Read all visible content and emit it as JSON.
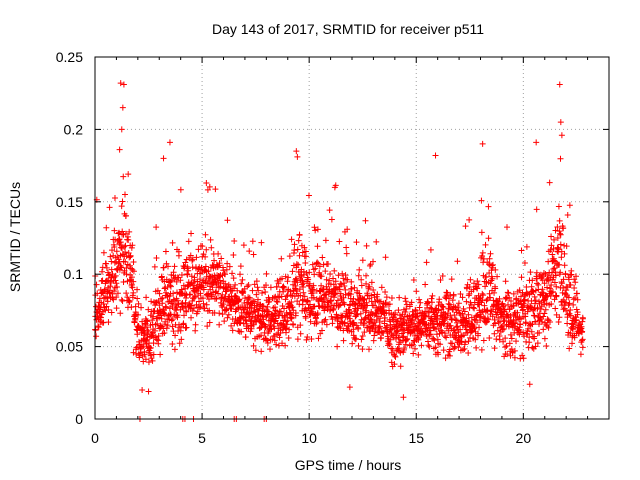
{
  "chart_data": {
    "type": "scatter",
    "title": "Day 143 of 2017, SRMTID for receiver p511",
    "xlabel": "GPS time / hours",
    "ylabel": "SRMTID / TECUs",
    "xlim": [
      0,
      24
    ],
    "ylim": [
      0,
      0.25
    ],
    "x_ticks": [
      0,
      5,
      10,
      15,
      20
    ],
    "x_tick_labels": [
      "0",
      "5",
      "10",
      "15",
      "20"
    ],
    "y_ticks": [
      0,
      0.05,
      0.1,
      0.15,
      0.2,
      0.25
    ],
    "y_tick_labels": [
      "0",
      "0.05",
      "0.1",
      "0.15",
      "0.2",
      "0.25"
    ],
    "grid": true,
    "marker": "+",
    "color": "#ff0000",
    "series": [
      {
        "name": "SRMTID",
        "envelope": [
          {
            "x": 0.0,
            "median": 0.072,
            "spread": 0.035
          },
          {
            "x": 0.5,
            "median": 0.09,
            "spread": 0.04
          },
          {
            "x": 1.0,
            "median": 0.1,
            "spread": 0.05
          },
          {
            "x": 1.3,
            "median": 0.12,
            "spread": 0.06
          },
          {
            "x": 1.6,
            "median": 0.1,
            "spread": 0.05
          },
          {
            "x": 2.0,
            "median": 0.055,
            "spread": 0.025
          },
          {
            "x": 2.5,
            "median": 0.055,
            "spread": 0.028
          },
          {
            "x": 3.0,
            "median": 0.075,
            "spread": 0.04
          },
          {
            "x": 3.5,
            "median": 0.085,
            "spread": 0.045
          },
          {
            "x": 4.0,
            "median": 0.08,
            "spread": 0.04
          },
          {
            "x": 5.0,
            "median": 0.095,
            "spread": 0.035
          },
          {
            "x": 6.0,
            "median": 0.09,
            "spread": 0.03
          },
          {
            "x": 7.0,
            "median": 0.075,
            "spread": 0.03
          },
          {
            "x": 8.0,
            "median": 0.07,
            "spread": 0.03
          },
          {
            "x": 9.0,
            "median": 0.075,
            "spread": 0.035
          },
          {
            "x": 9.5,
            "median": 0.1,
            "spread": 0.05
          },
          {
            "x": 10.0,
            "median": 0.085,
            "spread": 0.04
          },
          {
            "x": 11.0,
            "median": 0.085,
            "spread": 0.035
          },
          {
            "x": 12.0,
            "median": 0.075,
            "spread": 0.035
          },
          {
            "x": 13.0,
            "median": 0.075,
            "spread": 0.03
          },
          {
            "x": 14.0,
            "median": 0.06,
            "spread": 0.03
          },
          {
            "x": 15.0,
            "median": 0.065,
            "spread": 0.03
          },
          {
            "x": 16.0,
            "median": 0.07,
            "spread": 0.035
          },
          {
            "x": 17.0,
            "median": 0.065,
            "spread": 0.03
          },
          {
            "x": 18.0,
            "median": 0.075,
            "spread": 0.04
          },
          {
            "x": 18.5,
            "median": 0.09,
            "spread": 0.045
          },
          {
            "x": 19.0,
            "median": 0.065,
            "spread": 0.03
          },
          {
            "x": 20.0,
            "median": 0.07,
            "spread": 0.035
          },
          {
            "x": 21.0,
            "median": 0.08,
            "spread": 0.04
          },
          {
            "x": 21.7,
            "median": 0.11,
            "spread": 0.06
          },
          {
            "x": 22.3,
            "median": 0.07,
            "spread": 0.035
          },
          {
            "x": 22.8,
            "median": 0.06,
            "spread": 0.02
          }
        ],
        "notable_points": [
          {
            "x": 1.2,
            "y": 0.232
          },
          {
            "x": 1.35,
            "y": 0.231
          },
          {
            "x": 1.3,
            "y": 0.215
          },
          {
            "x": 1.25,
            "y": 0.2
          },
          {
            "x": 1.15,
            "y": 0.186
          },
          {
            "x": 3.5,
            "y": 0.191
          },
          {
            "x": 3.2,
            "y": 0.18
          },
          {
            "x": 5.2,
            "y": 0.163
          },
          {
            "x": 9.4,
            "y": 0.185
          },
          {
            "x": 9.45,
            "y": 0.181
          },
          {
            "x": 11.2,
            "y": 0.16
          },
          {
            "x": 15.9,
            "y": 0.182
          },
          {
            "x": 18.1,
            "y": 0.19
          },
          {
            "x": 20.6,
            "y": 0.191
          },
          {
            "x": 21.7,
            "y": 0.231
          },
          {
            "x": 21.75,
            "y": 0.205
          },
          {
            "x": 21.8,
            "y": 0.196
          },
          {
            "x": 14.4,
            "y": 0.015
          },
          {
            "x": 2.2,
            "y": 0.02
          },
          {
            "x": 2.5,
            "y": 0.019
          },
          {
            "x": 11.9,
            "y": 0.022
          },
          {
            "x": 20.3,
            "y": 0.024
          }
        ],
        "zero_points_x": [
          2.1,
          4.1,
          4.2,
          4.6,
          6.5,
          6.6,
          7.9,
          8.0
        ]
      }
    ]
  }
}
